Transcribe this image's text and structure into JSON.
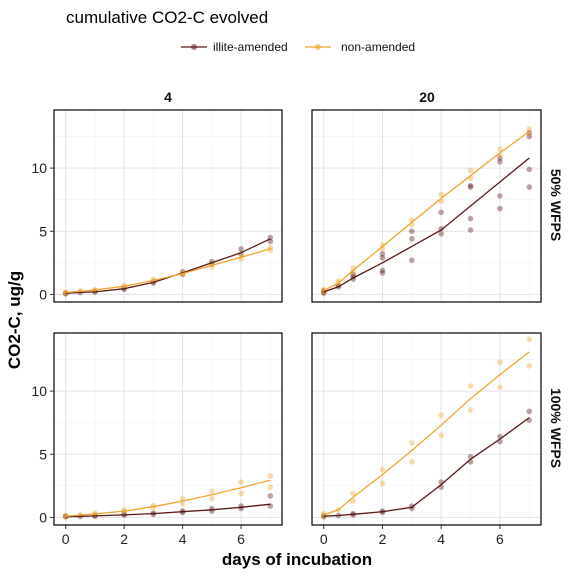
{
  "chart_data": {
    "type": "scatter",
    "title": "cumulative CO2-C evolved",
    "xlabel": "days of incubation",
    "ylabel": "CO2-C, ug/g",
    "xlim": [
      -0.4,
      7.4
    ],
    "ylim": [
      -0.6,
      14.6
    ],
    "x_ticks": [
      "0",
      "2",
      "4",
      "6"
    ],
    "y_ticks": [
      "0",
      "5",
      "10"
    ],
    "legend": {
      "position": "top",
      "entries": [
        {
          "name": "illite-amended",
          "color": "#5a1a17"
        },
        {
          "name": "non-amended",
          "color": "#f2a42e"
        }
      ]
    },
    "column_strips": [
      "4",
      "20"
    ],
    "row_strips": [
      "50% WFPS",
      "100% WFPS"
    ],
    "panels": [
      {
        "col": "4",
        "row": "50% WFPS",
        "series": [
          {
            "name": "illite-amended",
            "line": [
              [
                0,
                0.1
              ],
              [
                0.5,
                0.15
              ],
              [
                1,
                0.2
              ],
              [
                2,
                0.45
              ],
              [
                3,
                0.95
              ],
              [
                4,
                1.7
              ],
              [
                5,
                2.5
              ],
              [
                6,
                3.3
              ],
              [
                7,
                4.4
              ]
            ],
            "points": [
              [
                0,
                0.05
              ],
              [
                0,
                0.1
              ],
              [
                0.5,
                0.15
              ],
              [
                1,
                0.2
              ],
              [
                1,
                0.25
              ],
              [
                2,
                0.4
              ],
              [
                2,
                0.5
              ],
              [
                3,
                0.9
              ],
              [
                3,
                1.0
              ],
              [
                4,
                1.6
              ],
              [
                4,
                1.8
              ],
              [
                5,
                2.4
              ],
              [
                5,
                2.6
              ],
              [
                6,
                3.2
              ],
              [
                6,
                3.6
              ],
              [
                7,
                4.2
              ],
              [
                7,
                4.5
              ]
            ]
          },
          {
            "name": "non-amended",
            "line": [
              [
                0,
                0.15
              ],
              [
                0.5,
                0.25
              ],
              [
                1,
                0.35
              ],
              [
                2,
                0.65
              ],
              [
                3,
                1.1
              ],
              [
                4,
                1.65
              ],
              [
                5,
                2.3
              ],
              [
                6,
                2.95
              ],
              [
                7,
                3.6
              ]
            ],
            "points": [
              [
                0,
                0.1
              ],
              [
                0,
                0.2
              ],
              [
                0.5,
                0.3
              ],
              [
                1,
                0.3
              ],
              [
                1,
                0.4
              ],
              [
                2,
                0.6
              ],
              [
                2,
                0.7
              ],
              [
                3,
                1.05
              ],
              [
                3,
                1.2
              ],
              [
                4,
                1.6
              ],
              [
                4,
                1.75
              ],
              [
                5,
                2.2
              ],
              [
                5,
                2.4
              ],
              [
                6,
                2.8
              ],
              [
                6,
                3.1
              ],
              [
                7,
                3.5
              ],
              [
                7,
                3.7
              ]
            ]
          }
        ]
      },
      {
        "col": "20",
        "row": "50% WFPS",
        "series": [
          {
            "name": "illite-amended",
            "line": [
              [
                0,
                0.2
              ],
              [
                0.5,
                0.6
              ],
              [
                1,
                1.3
              ],
              [
                2,
                2.5
              ],
              [
                3,
                3.8
              ],
              [
                4,
                5.1
              ],
              [
                5,
                7.0
              ],
              [
                6,
                8.9
              ],
              [
                7,
                10.8
              ]
            ],
            "points": [
              [
                0,
                0.1
              ],
              [
                0,
                0.2
              ],
              [
                0,
                0.3
              ],
              [
                0.5,
                0.6
              ],
              [
                0.5,
                0.7
              ],
              [
                1,
                1.2
              ],
              [
                1,
                1.4
              ],
              [
                1,
                1.6
              ],
              [
                2,
                1.7
              ],
              [
                2,
                1.9
              ],
              [
                2,
                2.9
              ],
              [
                2,
                3.2
              ],
              [
                3,
                2.7
              ],
              [
                3,
                4.4
              ],
              [
                3,
                5.0
              ],
              [
                4,
                4.8
              ],
              [
                4,
                5.2
              ],
              [
                4,
                6.5
              ],
              [
                5,
                5.1
              ],
              [
                5,
                6.0
              ],
              [
                5,
                8.5
              ],
              [
                5,
                8.6
              ],
              [
                6,
                6.8
              ],
              [
                6,
                7.8
              ],
              [
                6,
                10.5
              ],
              [
                6,
                10.8
              ],
              [
                7,
                8.5
              ],
              [
                7,
                9.9
              ],
              [
                7,
                12.5
              ],
              [
                7,
                12.8
              ]
            ]
          },
          {
            "name": "non-amended",
            "line": [
              [
                0,
                0.3
              ],
              [
                0.5,
                0.9
              ],
              [
                1,
                1.9
              ],
              [
                2,
                3.8
              ],
              [
                3,
                5.7
              ],
              [
                4,
                7.6
              ],
              [
                5,
                9.4
              ],
              [
                6,
                11.2
              ],
              [
                7,
                12.9
              ]
            ],
            "points": [
              [
                0,
                0.2
              ],
              [
                0,
                0.4
              ],
              [
                0.5,
                0.9
              ],
              [
                0.5,
                1.1
              ],
              [
                1,
                1.8
              ],
              [
                1,
                2.1
              ],
              [
                2,
                3.6
              ],
              [
                2,
                3.9
              ],
              [
                3,
                5.5
              ],
              [
                3,
                5.9
              ],
              [
                4,
                7.4
              ],
              [
                4,
                7.9
              ],
              [
                5,
                9.2
              ],
              [
                5,
                9.8
              ],
              [
                6,
                11.0
              ],
              [
                6,
                11.5
              ],
              [
                7,
                12.7
              ],
              [
                7,
                13.1
              ]
            ]
          }
        ]
      },
      {
        "col": "4",
        "row": "100% WFPS",
        "series": [
          {
            "name": "illite-amended",
            "line": [
              [
                0,
                0.05
              ],
              [
                0.5,
                0.08
              ],
              [
                1,
                0.12
              ],
              [
                2,
                0.2
              ],
              [
                3,
                0.3
              ],
              [
                4,
                0.45
              ],
              [
                5,
                0.6
              ],
              [
                6,
                0.8
              ],
              [
                7,
                1.05
              ]
            ],
            "points": [
              [
                0,
                0.05
              ],
              [
                0,
                0.1
              ],
              [
                0.5,
                0.08
              ],
              [
                1,
                0.1
              ],
              [
                1,
                0.15
              ],
              [
                2,
                0.2
              ],
              [
                2,
                0.25
              ],
              [
                3,
                0.25
              ],
              [
                3,
                0.35
              ],
              [
                4,
                0.4
              ],
              [
                4,
                0.5
              ],
              [
                5,
                0.5
              ],
              [
                5,
                0.7
              ],
              [
                6,
                0.7
              ],
              [
                6,
                0.9
              ],
              [
                7,
                0.9
              ],
              [
                7,
                1.7
              ]
            ]
          },
          {
            "name": "non-amended",
            "line": [
              [
                0,
                0.1
              ],
              [
                0.5,
                0.18
              ],
              [
                1,
                0.28
              ],
              [
                2,
                0.5
              ],
              [
                3,
                0.85
              ],
              [
                4,
                1.3
              ],
              [
                5,
                1.8
              ],
              [
                6,
                2.35
              ],
              [
                7,
                2.95
              ]
            ],
            "points": [
              [
                0,
                0.05
              ],
              [
                0,
                0.15
              ],
              [
                0.5,
                0.2
              ],
              [
                1,
                0.25
              ],
              [
                1,
                0.35
              ],
              [
                2,
                0.45
              ],
              [
                2,
                0.6
              ],
              [
                3,
                0.8
              ],
              [
                3,
                0.95
              ],
              [
                4,
                1.1
              ],
              [
                4,
                1.5
              ],
              [
                5,
                1.5
              ],
              [
                5,
                2.1
              ],
              [
                6,
                1.9
              ],
              [
                6,
                2.8
              ],
              [
                7,
                2.4
              ],
              [
                7,
                3.3
              ]
            ]
          }
        ]
      },
      {
        "col": "20",
        "row": "100% WFPS",
        "series": [
          {
            "name": "illite-amended",
            "line": [
              [
                0,
                0.1
              ],
              [
                0.5,
                0.15
              ],
              [
                1,
                0.25
              ],
              [
                2,
                0.45
              ],
              [
                3,
                0.8
              ],
              [
                4,
                2.6
              ],
              [
                5,
                4.6
              ],
              [
                6,
                6.2
              ],
              [
                7,
                7.9
              ]
            ],
            "points": [
              [
                0,
                0.05
              ],
              [
                0,
                0.15
              ],
              [
                0.5,
                0.15
              ],
              [
                1,
                0.2
              ],
              [
                1,
                0.3
              ],
              [
                2,
                0.4
              ],
              [
                2,
                0.5
              ],
              [
                3,
                0.7
              ],
              [
                3,
                0.9
              ],
              [
                4,
                2.4
              ],
              [
                4,
                2.8
              ],
              [
                5,
                4.4
              ],
              [
                5,
                4.8
              ],
              [
                6,
                6.0
              ],
              [
                6,
                6.4
              ],
              [
                7,
                7.7
              ],
              [
                7,
                8.4
              ]
            ]
          },
          {
            "name": "non-amended",
            "line": [
              [
                0,
                0.2
              ],
              [
                0.5,
                0.6
              ],
              [
                1,
                1.6
              ],
              [
                2,
                3.4
              ],
              [
                3,
                5.3
              ],
              [
                4,
                7.3
              ],
              [
                5,
                9.4
              ],
              [
                6,
                11.3
              ],
              [
                7,
                13.1
              ]
            ],
            "points": [
              [
                0,
                0.1
              ],
              [
                0,
                0.3
              ],
              [
                0.5,
                0.6
              ],
              [
                1,
                1.3
              ],
              [
                1,
                1.9
              ],
              [
                2,
                2.7
              ],
              [
                2,
                3.8
              ],
              [
                3,
                4.4
              ],
              [
                3,
                5.9
              ],
              [
                4,
                6.5
              ],
              [
                4,
                8.1
              ],
              [
                5,
                8.5
              ],
              [
                5,
                10.4
              ],
              [
                6,
                10.3
              ],
              [
                6,
                12.3
              ],
              [
                7,
                12.0
              ],
              [
                7,
                14.1
              ]
            ]
          }
        ]
      }
    ]
  }
}
